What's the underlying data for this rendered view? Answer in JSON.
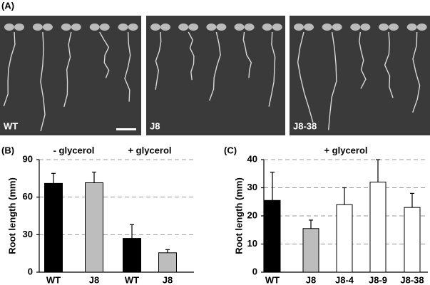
{
  "panel_labels": [
    "(A)",
    "(B)",
    "(C)"
  ],
  "photo_labels": [
    "WT",
    "J8",
    "J8-38"
  ],
  "chart_data": [
    {
      "type": "bar",
      "ylabel": "Root length (mm)",
      "group_labels": [
        "- glycerol",
        "+ glycerol"
      ],
      "categories": [
        "WT",
        "J8",
        "WT",
        "J8"
      ],
      "values": [
        71,
        71.5,
        27,
        15.5
      ],
      "errors": [
        8,
        8.5,
        11,
        2.5
      ],
      "colors": [
        "#000000",
        "#bdbdbd",
        "#000000",
        "#bdbdbd"
      ],
      "ylim": [
        0,
        90
      ],
      "yticks": [
        0,
        30,
        60,
        90
      ],
      "grid": true
    },
    {
      "type": "bar",
      "title": "+ glycerol",
      "ylabel": "Root length (mm)",
      "categories": [
        "WT",
        "J8",
        "J8-4",
        "J8-9",
        "J8-38"
      ],
      "values": [
        25.5,
        15.5,
        24,
        32,
        23
      ],
      "errors": [
        10,
        3,
        6,
        8,
        5
      ],
      "colors": [
        "#000000",
        "#bdbdbd",
        "#ffffff",
        "#ffffff",
        "#ffffff"
      ],
      "ylim": [
        0,
        40
      ],
      "yticks": [
        0,
        10,
        20,
        30,
        40
      ],
      "grid": true
    }
  ]
}
